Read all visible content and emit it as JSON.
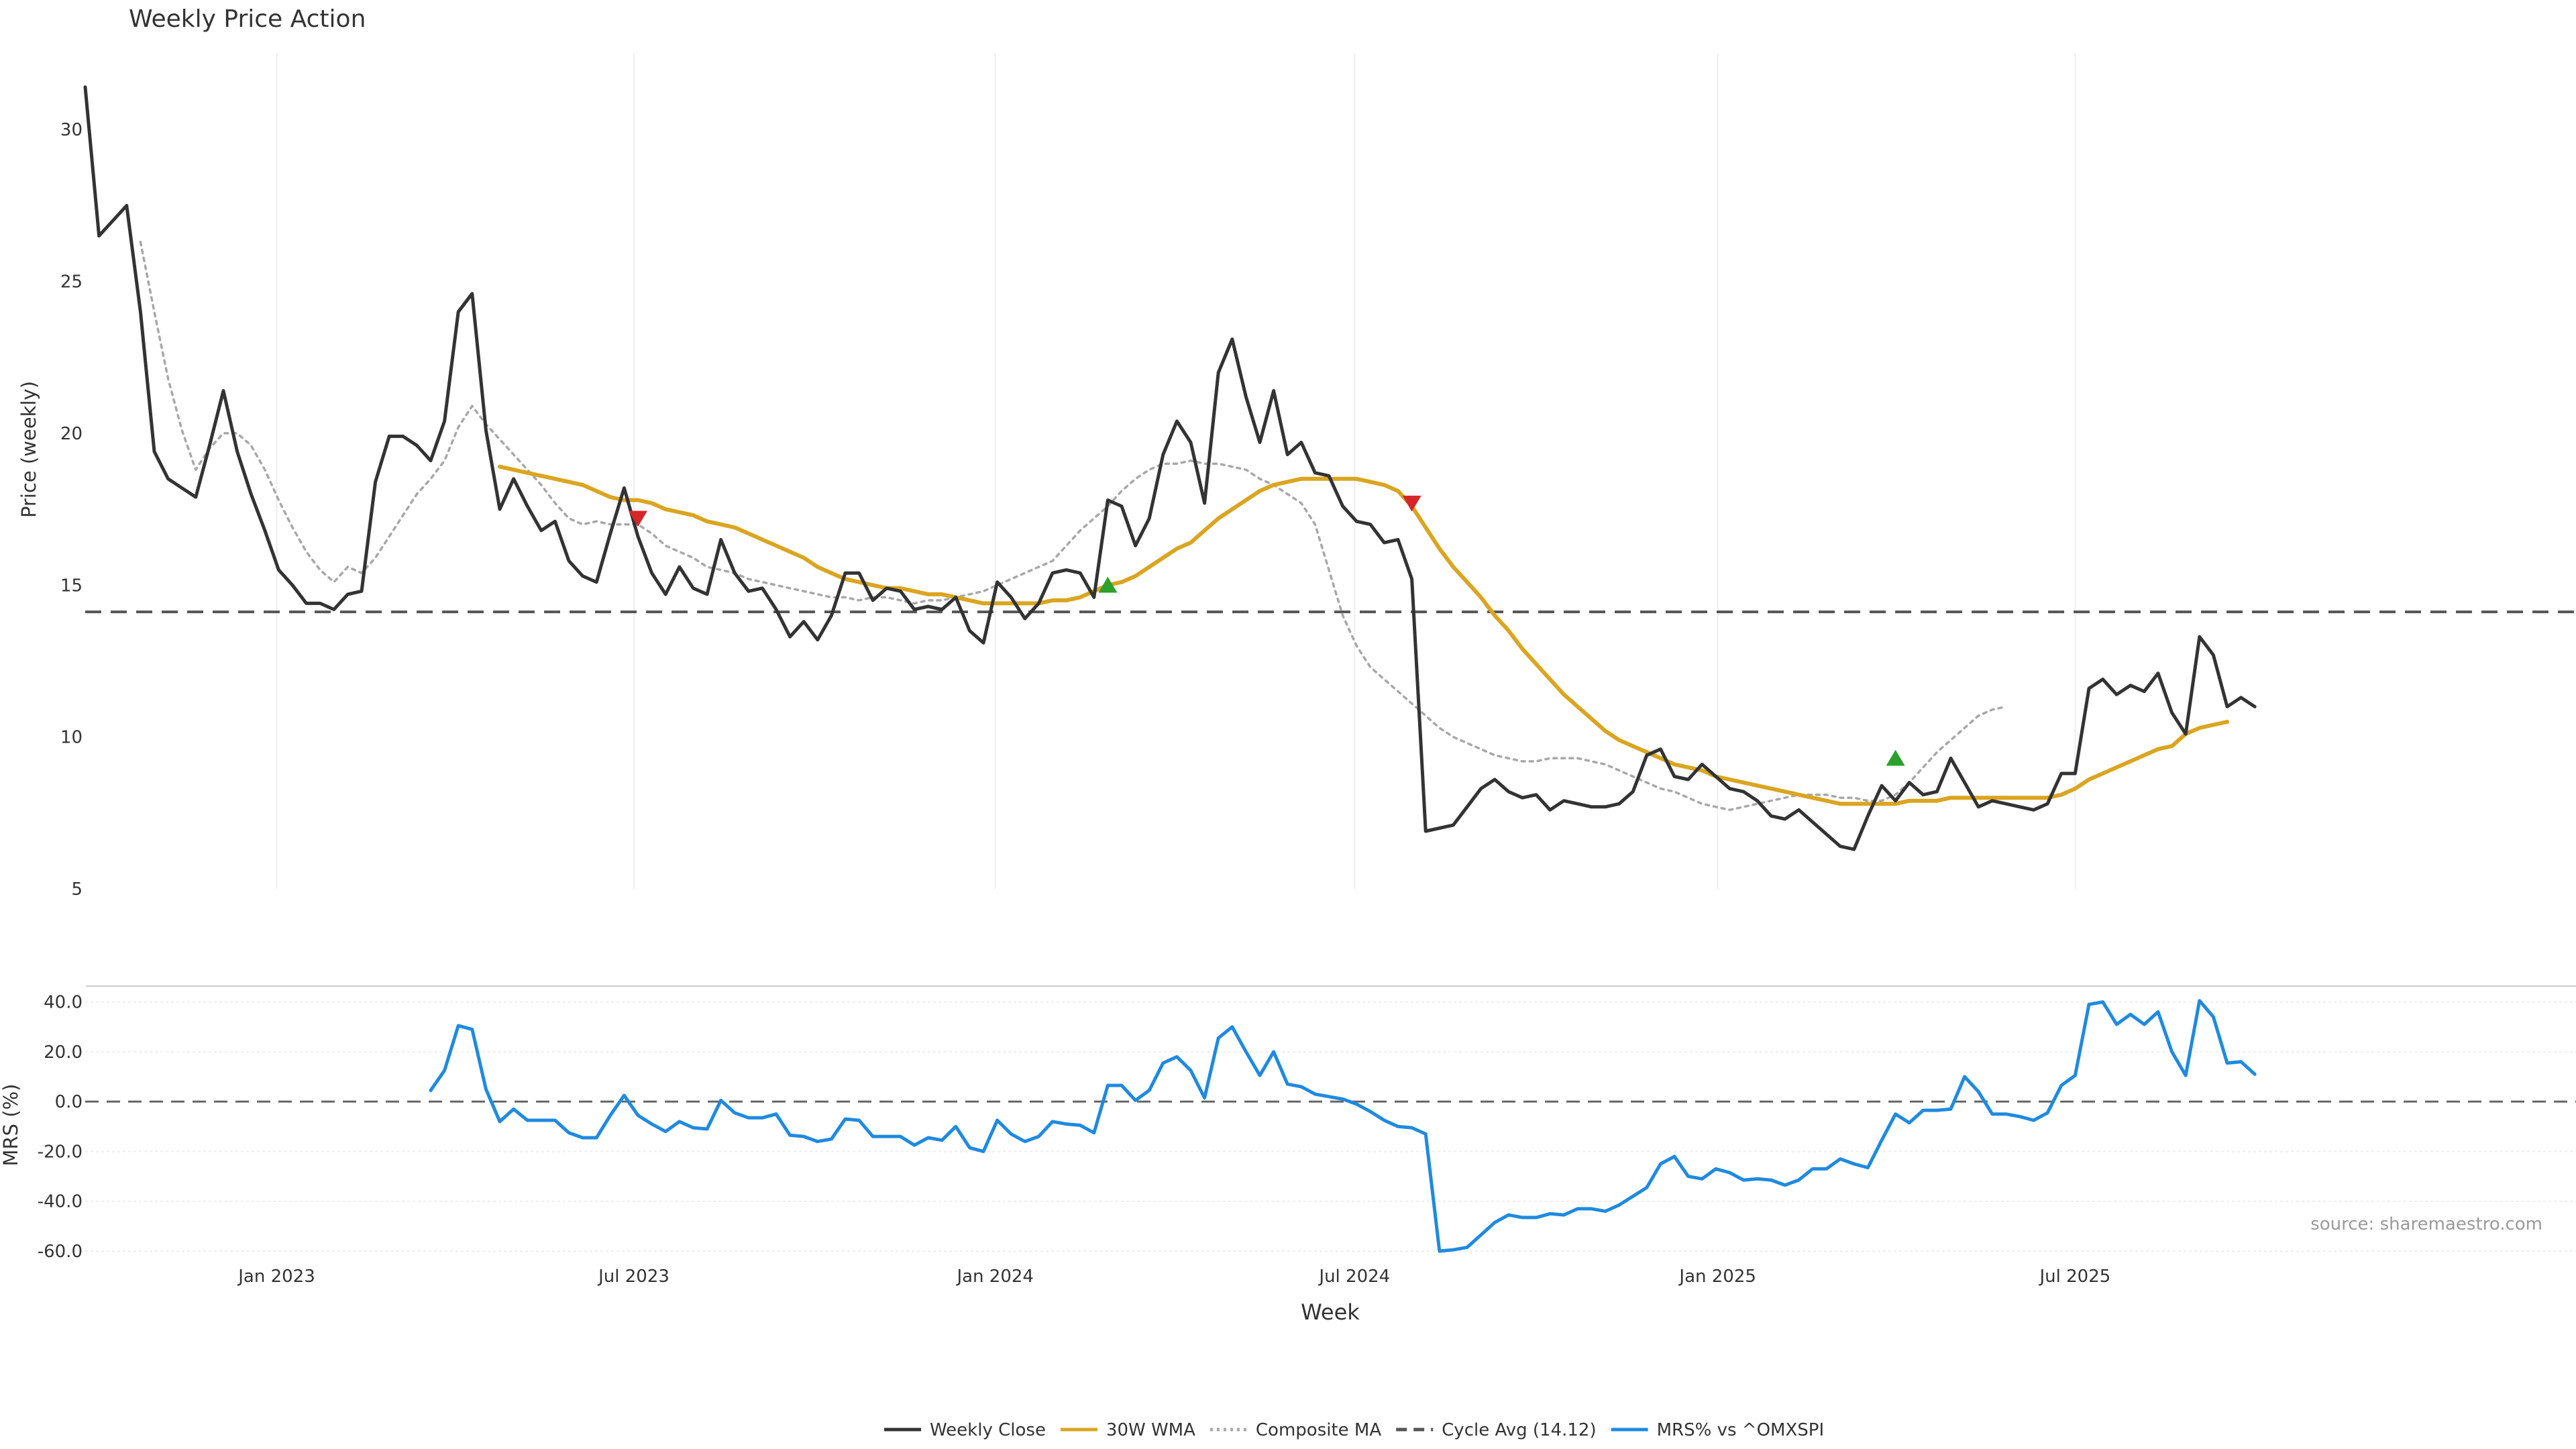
{
  "chart_data": [
    {
      "type": "line",
      "title": "Weekly Price Action",
      "ylabel": "Price (weekly)",
      "ylim": [
        5,
        32.5
      ],
      "yticks": [
        "5",
        "10",
        "15",
        "20",
        "25",
        "30"
      ],
      "x_start": "2022-09-30",
      "x_step_days": 7,
      "cycle_avg": 14.12,
      "series": [
        {
          "name": "Weekly Close",
          "color": "#333333",
          "start_index": 0,
          "values": [
            31.4,
            26.5,
            27.0,
            27.5,
            24.0,
            19.4,
            18.5,
            18.2,
            17.9,
            19.6,
            21.4,
            19.4,
            18.0,
            16.8,
            15.5,
            15.0,
            14.4,
            14.4,
            14.2,
            14.7,
            14.8,
            18.4,
            19.9,
            19.9,
            19.6,
            19.1,
            20.4,
            24.0,
            24.6,
            20.1,
            17.5,
            18.5,
            17.6,
            16.8,
            17.1,
            15.8,
            15.3,
            15.1,
            16.7,
            18.2,
            16.6,
            15.4,
            14.7,
            15.6,
            14.9,
            14.7,
            16.5,
            15.4,
            14.8,
            14.9,
            14.2,
            13.3,
            13.8,
            13.2,
            14.0,
            15.4,
            15.4,
            14.5,
            14.9,
            14.8,
            14.2,
            14.3,
            14.2,
            14.6,
            13.5,
            13.1,
            15.1,
            14.6,
            13.9,
            14.4,
            15.4,
            15.5,
            15.4,
            14.6,
            17.8,
            17.6,
            16.3,
            17.2,
            19.3,
            20.4,
            19.7,
            17.7,
            22.0,
            23.1,
            21.2,
            19.7,
            21.4,
            19.3,
            19.7,
            18.7,
            18.6,
            17.6,
            17.1,
            17.0,
            16.4,
            16.5,
            15.2,
            6.9,
            7.0,
            7.1,
            7.7,
            8.3,
            8.6,
            8.2,
            8.0,
            8.1,
            7.6,
            7.9,
            7.8,
            7.7,
            7.7,
            7.8,
            8.2,
            9.4,
            9.6,
            8.7,
            8.6,
            9.1,
            8.7,
            8.3,
            8.2,
            7.9,
            7.4,
            7.3,
            7.6,
            7.2,
            6.8,
            6.4,
            6.3,
            7.4,
            8.4,
            7.9,
            8.5,
            8.1,
            8.2,
            9.3,
            8.5,
            7.7,
            7.9,
            7.8,
            7.7,
            7.6,
            7.8,
            8.8,
            8.8,
            11.6,
            11.9,
            11.4,
            11.7,
            11.5,
            12.1,
            10.8,
            10.1,
            13.3,
            12.7,
            11.0,
            11.3,
            11.0
          ]
        },
        {
          "name": "30W WMA",
          "color": "#DAA520",
          "start_index": 30,
          "values": [
            18.9,
            18.8,
            18.7,
            18.6,
            18.5,
            18.4,
            18.3,
            18.1,
            17.9,
            17.8,
            17.8,
            17.7,
            17.5,
            17.4,
            17.3,
            17.1,
            17.0,
            16.9,
            16.7,
            16.5,
            16.3,
            16.1,
            15.9,
            15.6,
            15.4,
            15.2,
            15.1,
            15.0,
            14.9,
            14.9,
            14.8,
            14.7,
            14.7,
            14.6,
            14.5,
            14.4,
            14.4,
            14.4,
            14.4,
            14.4,
            14.5,
            14.5,
            14.6,
            14.8,
            15.0,
            15.1,
            15.3,
            15.6,
            15.9,
            16.2,
            16.4,
            16.8,
            17.2,
            17.5,
            17.8,
            18.1,
            18.3,
            18.4,
            18.5,
            18.5,
            18.5,
            18.5,
            18.5,
            18.4,
            18.3,
            18.1,
            17.6,
            16.9,
            16.2,
            15.6,
            15.1,
            14.6,
            14.0,
            13.5,
            12.9,
            12.4,
            11.9,
            11.4,
            11.0,
            10.6,
            10.2,
            9.9,
            9.7,
            9.5,
            9.3,
            9.1,
            9.0,
            8.9,
            8.7,
            8.6,
            8.5,
            8.4,
            8.3,
            8.2,
            8.1,
            8.0,
            7.9,
            7.8,
            7.8,
            7.8,
            7.8,
            7.8,
            7.9,
            7.9,
            7.9,
            8.0,
            8.0,
            8.0,
            8.0,
            8.0,
            8.0,
            8.0,
            8.0,
            8.1,
            8.3,
            8.6,
            8.8,
            9.0,
            9.2,
            9.4,
            9.6,
            9.7,
            10.1,
            10.3,
            10.4,
            10.5
          ]
        },
        {
          "name": "Composite MA",
          "color": "#a8a8a8",
          "start_index": 4,
          "values": [
            26.3,
            24.0,
            21.8,
            20.1,
            18.8,
            19.5,
            20.0,
            20.0,
            19.6,
            18.8,
            17.8,
            16.9,
            16.1,
            15.5,
            15.1,
            15.6,
            15.4,
            15.9,
            16.6,
            17.3,
            18.0,
            18.5,
            19.1,
            20.2,
            20.9,
            20.3,
            19.8,
            19.3,
            18.8,
            18.3,
            17.7,
            17.2,
            17.0,
            17.1,
            17.0,
            17.0,
            17.0,
            16.7,
            16.3,
            16.1,
            15.9,
            15.6,
            15.5,
            15.4,
            15.2,
            15.1,
            15.0,
            14.9,
            14.8,
            14.7,
            14.6,
            14.6,
            14.5,
            14.6,
            14.6,
            14.5,
            14.4,
            14.5,
            14.5,
            14.6,
            14.7,
            14.8,
            15.0,
            15.2,
            15.4,
            15.6,
            15.8,
            16.3,
            16.8,
            17.2,
            17.6,
            18.1,
            18.5,
            18.8,
            19.0,
            19.0,
            19.1,
            19.0,
            19.0,
            18.9,
            18.8,
            18.5,
            18.3,
            18.0,
            17.7,
            17.0,
            15.5,
            14.0,
            13.0,
            12.3,
            11.9,
            11.5,
            11.1,
            10.7,
            10.3,
            10.0,
            9.8,
            9.6,
            9.4,
            9.3,
            9.2,
            9.2,
            9.3,
            9.3,
            9.3,
            9.2,
            9.1,
            8.9,
            8.7,
            8.5,
            8.3,
            8.2,
            8.0,
            7.8,
            7.7,
            7.6,
            7.7,
            7.8,
            7.9,
            8.0,
            8.1,
            8.1,
            8.1,
            8.0,
            8.0,
            7.9,
            7.9,
            8.1,
            8.5,
            9.0,
            9.5,
            9.9,
            10.3,
            10.7,
            10.9,
            11.0
          ]
        }
      ],
      "signals": [
        {
          "type": "sell",
          "week_index": 40,
          "value": 17.2,
          "color": "#d62728"
        },
        {
          "type": "buy",
          "week_index": 74,
          "value": 15.0,
          "color": "#2ca02c"
        },
        {
          "type": "sell",
          "week_index": 96,
          "value": 17.7,
          "color": "#d62728"
        },
        {
          "type": "buy",
          "week_index": 131,
          "value": 9.3,
          "color": "#2ca02c"
        }
      ]
    },
    {
      "type": "line",
      "ylabel": "MRS (%)",
      "xlabel": "Week",
      "ylim": [
        -60,
        45
      ],
      "yticks": [
        "-60.0",
        "-40.0",
        "-20.0",
        "0.0",
        "20.0",
        "40.0"
      ],
      "xticks": [
        {
          "label": "Jan 2023",
          "week": 13.86
        },
        {
          "label": "Jul 2023",
          "week": 39.71
        },
        {
          "label": "Jan 2024",
          "week": 65.86
        },
        {
          "label": "Jul 2024",
          "week": 91.86
        },
        {
          "label": "Jan 2025",
          "week": 118.14
        },
        {
          "label": "Jul 2025",
          "week": 144.0
        }
      ],
      "series": [
        {
          "name": "MRS% vs ^OMXSPI",
          "color": "#1f8ae0",
          "start_index": 25,
          "values": [
            4.5,
            12.5,
            30.5,
            29.0,
            5.0,
            -8.0,
            -3.0,
            -7.5,
            -7.5,
            -7.5,
            -12.5,
            -14.5,
            -14.5,
            -5.5,
            2.5,
            -5.5,
            -9.0,
            -12.0,
            -8.0,
            -10.5,
            -11.0,
            0.5,
            -4.5,
            -6.5,
            -6.5,
            -5.0,
            -13.5,
            -14.0,
            -16.0,
            -15.0,
            -7.0,
            -7.5,
            -14.0,
            -14.0,
            -14.0,
            -17.5,
            -14.5,
            -15.5,
            -10.0,
            -18.5,
            -20.0,
            -7.5,
            -13.0,
            -16.0,
            -14.0,
            -8.0,
            -9.0,
            -9.5,
            -12.5,
            6.5,
            6.5,
            0.5,
            4.5,
            15.5,
            18.0,
            12.5,
            1.5,
            25.5,
            30.0,
            20.0,
            10.5,
            20.0,
            7.0,
            6.0,
            3.0,
            2.0,
            1.0,
            -1.0,
            -4.0,
            -7.5,
            -10.0,
            -10.5,
            -13.0,
            -60.0,
            -59.5,
            -58.5,
            -53.5,
            -48.5,
            -45.5,
            -46.5,
            -46.5,
            -45.0,
            -45.5,
            -43.0,
            -43.0,
            -44.0,
            -41.5,
            -38.0,
            -34.5,
            -25.0,
            -22.0,
            -30.0,
            -31.0,
            -27.0,
            -28.5,
            -31.5,
            -31.0,
            -31.5,
            -33.5,
            -31.5,
            -27.0,
            -27.0,
            -23.0,
            -25.0,
            -26.5,
            -15.5,
            -5.0,
            -8.5,
            -3.5,
            -3.5,
            -3.0,
            10.0,
            4.0,
            -5.0,
            -5.0,
            -6.0,
            -7.5,
            -4.5,
            6.5,
            10.5,
            39.0,
            40.0,
            31.0,
            35.0,
            31.0,
            36.0,
            20.0,
            10.5,
            40.5,
            34.0,
            15.5,
            16.0,
            11.0
          ]
        }
      ],
      "reference_line": 0
    }
  ],
  "legend": [
    {
      "label": "Weekly Close",
      "color": "#333333",
      "style": "solid"
    },
    {
      "label": "30W WMA",
      "color": "#DAA520",
      "style": "solid"
    },
    {
      "label": "Composite MA",
      "color": "#a8a8a8",
      "style": "dotted"
    },
    {
      "label": "Cycle Avg (14.12)",
      "color": "#555555",
      "style": "dashed"
    },
    {
      "label": "MRS% vs ^OMXSPI",
      "color": "#1f8ae0",
      "style": "solid"
    }
  ],
  "source": "source: sharemaestro.com"
}
